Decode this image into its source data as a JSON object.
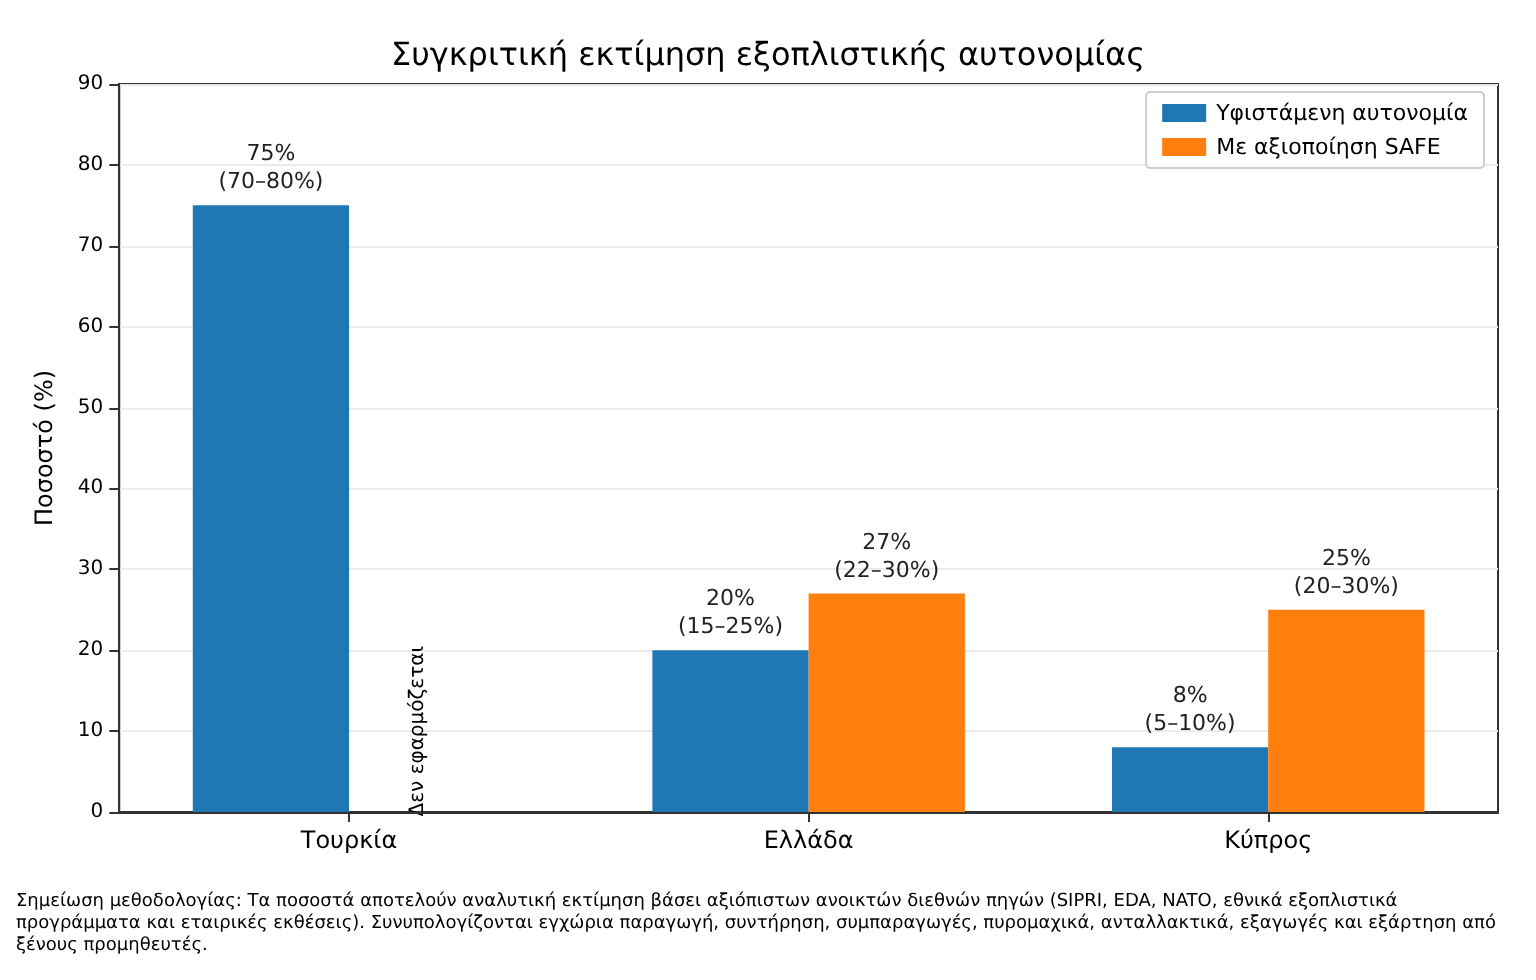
{
  "chart_data": {
    "type": "bar",
    "title": "Συγκριτική εκτίμηση εξοπλιστικής αυτονομίας",
    "ylabel": "Ποσοστό (%)",
    "categories": [
      "Τουρκία",
      "Ελλάδα",
      "Κύπρος"
    ],
    "series": [
      {
        "name": "Υφιστάμενη αυτονομία",
        "color": "#1f77b4",
        "values": [
          75,
          20,
          8
        ],
        "value_labels": [
          "75%\n(70–80%)",
          "20%\n(15–25%)",
          "8%\n(5–10%)"
        ]
      },
      {
        "name": "Με αξιοποίηση SAFE",
        "color": "#ff7f0e",
        "values": [
          null,
          27,
          25
        ],
        "value_labels": [
          null,
          "27%\n(22–30%)",
          "25%\n(20–30%)"
        ]
      }
    ],
    "ylim": [
      0,
      90
    ],
    "yticks": [
      0,
      10,
      20,
      30,
      40,
      50,
      60,
      70,
      80,
      90
    ],
    "grid": "y",
    "legend": "top right",
    "annotations": [
      {
        "text": "Δεν εφαρμόζεται",
        "x": "Τουρκία",
        "y": 10
      },
      "Σημείωση μεθοδολογίας: Τα ποσοστά αποτελούν αναλυτική εκτίμηση βάσει αξιόπιστων ανοικτών διεθνών πηγών (SIPRI, EDA, NATO, εθνικά εξοπλιστικά προγράμματα και εταιρικές εκθέσεις). Συνυπολογίζονται εγχώρια παραγωγή, συντήρηση, συμπαραγωγές, πυρομαχικά, ανταλλακτικά, εξαγωγές και εξάρτηση από ξένους προμηθευτές."
    ]
  }
}
